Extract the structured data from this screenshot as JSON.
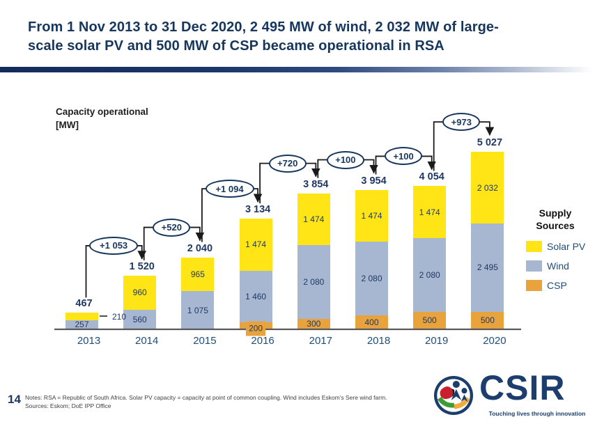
{
  "slide": {
    "title_line1": "From 1 Nov 2013 to 31 Dec 2020, 2 495 MW of wind, 2 032 MW of large-",
    "title_line2": "scale solar PV and 500 MW of CSP became operational in RSA",
    "page_number": "14",
    "notes_line1": "Notes: RSA = Republic of South Africa. Solar PV capacity = capacity at point of common coupling. Wind includes Eskom’s Sere wind farm.",
    "notes_line2": "Sources: Eskom; DoE IPP Office",
    "logo": {
      "text": "CSIR",
      "tagline": "Touching lives through innovation"
    }
  },
  "chart_data": {
    "type": "bar",
    "stacked": true,
    "title": "Capacity operational",
    "unit_label": "[MW]",
    "categories": [
      "2013",
      "2014",
      "2015",
      "2016",
      "2017",
      "2018",
      "2019",
      "2020"
    ],
    "series": [
      {
        "name": "CSP",
        "color": "#E8A33D",
        "values": [
          0,
          0,
          0,
          200,
          300,
          400,
          500,
          500
        ],
        "labels": [
          "",
          "",
          "",
          "200",
          "300",
          "400",
          "500",
          "500"
        ]
      },
      {
        "name": "Wind",
        "color": "#A7B7D1",
        "values": [
          257,
          560,
          1075,
          1460,
          2080,
          2080,
          2080,
          2495
        ],
        "labels": [
          "257",
          "560",
          "1 075",
          "1 460",
          "2 080",
          "2 080",
          "2 080",
          "2 495"
        ]
      },
      {
        "name": "Solar PV",
        "color": "#FFE515",
        "values": [
          210,
          960,
          965,
          1474,
          1474,
          1474,
          1474,
          2032
        ],
        "labels": [
          "210",
          "960",
          "965",
          "1 474",
          "1 474",
          "1 474",
          "1 474",
          "2 032"
        ]
      }
    ],
    "totals": [
      467,
      1520,
      2040,
      3134,
      3854,
      3954,
      4054,
      5027
    ],
    "totals_labels": [
      "467",
      "1 520",
      "2 040",
      "3 134",
      "3 854",
      "3 954",
      "4 054",
      "5 027"
    ],
    "increments_labels": [
      "+1 053",
      "+520",
      "+1 094",
      "+720",
      "+100",
      "+100",
      "+973"
    ],
    "label_overrides": [
      {
        "series": "Solar PV",
        "category": "2013",
        "mode": "outside-right"
      },
      {
        "series": "CSP",
        "category": "2016",
        "mode": "chip"
      }
    ],
    "legend": {
      "title": "Supply Sources",
      "items": [
        {
          "label": "Solar PV",
          "color": "#FFE515"
        },
        {
          "label": "Wind",
          "color": "#A7B7D1"
        },
        {
          "label": "CSP",
          "color": "#E8A33D"
        }
      ]
    },
    "ylim": [
      0,
      5027
    ],
    "grid": false,
    "legend_position": "right"
  }
}
